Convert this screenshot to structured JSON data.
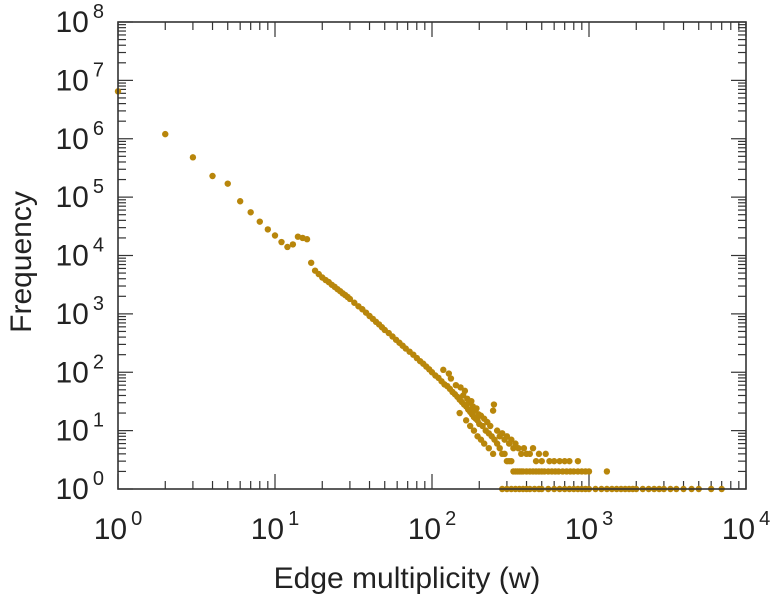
{
  "chart_data": {
    "type": "scatter",
    "xlabel": "Edge multiplicity (w)",
    "ylabel": "Frequency",
    "x_scale": "log",
    "y_scale": "log",
    "xlim": [
      1,
      10000
    ],
    "ylim": [
      1,
      100000000
    ],
    "x_ticks": [
      {
        "base": "10",
        "exp": "0",
        "value": 1
      },
      {
        "base": "10",
        "exp": "1",
        "value": 10
      },
      {
        "base": "10",
        "exp": "2",
        "value": 100
      },
      {
        "base": "10",
        "exp": "3",
        "value": 1000
      },
      {
        "base": "10",
        "exp": "4",
        "value": 10000
      }
    ],
    "y_ticks": [
      {
        "base": "10",
        "exp": "0",
        "value": 1
      },
      {
        "base": "10",
        "exp": "1",
        "value": 10
      },
      {
        "base": "10",
        "exp": "2",
        "value": 100
      },
      {
        "base": "10",
        "exp": "3",
        "value": 1000
      },
      {
        "base": "10",
        "exp": "4",
        "value": 10000
      },
      {
        "base": "10",
        "exp": "5",
        "value": 100000
      },
      {
        "base": "10",
        "exp": "6",
        "value": 1000000
      },
      {
        "base": "10",
        "exp": "7",
        "value": 10000000
      },
      {
        "base": "10",
        "exp": "8",
        "value": 100000000
      }
    ],
    "grid": false,
    "marker_color": "#b8860b",
    "series": [
      {
        "points": [
          [
            1,
            6500000
          ],
          [
            2,
            1200000
          ],
          [
            3,
            480000
          ],
          [
            4,
            230000
          ],
          [
            5,
            170000
          ],
          [
            6,
            85000
          ],
          [
            7,
            55000
          ],
          [
            8,
            38000
          ],
          [
            9,
            28000
          ],
          [
            10,
            22000
          ],
          [
            11,
            17000
          ],
          [
            12,
            14000
          ],
          [
            13,
            15500
          ],
          [
            14,
            21000
          ],
          [
            15,
            20000
          ],
          [
            16,
            19000
          ],
          [
            17,
            7500
          ],
          [
            18,
            5500
          ],
          [
            19,
            4800
          ],
          [
            20,
            4200
          ],
          [
            21,
            3800
          ],
          [
            22,
            3500
          ],
          [
            23,
            3150
          ],
          [
            24,
            2900
          ],
          [
            25,
            2650
          ],
          [
            26,
            2450
          ],
          [
            27,
            2250
          ],
          [
            28,
            2100
          ],
          [
            29,
            1950
          ],
          [
            30,
            1800
          ],
          [
            32,
            1550
          ],
          [
            34,
            1350
          ],
          [
            36,
            1200
          ],
          [
            38,
            1050
          ],
          [
            40,
            920
          ],
          [
            42,
            820
          ],
          [
            44,
            730
          ],
          [
            46,
            660
          ],
          [
            48,
            590
          ],
          [
            50,
            530
          ],
          [
            53,
            470
          ],
          [
            56,
            410
          ],
          [
            59,
            360
          ],
          [
            62,
            320
          ],
          [
            65,
            285
          ],
          [
            68,
            255
          ],
          [
            72,
            225
          ],
          [
            76,
            200
          ],
          [
            80,
            175
          ],
          [
            84,
            155
          ],
          [
            88,
            140
          ],
          [
            92,
            125
          ],
          [
            96,
            112
          ],
          [
            100,
            100
          ],
          [
            105,
            88
          ],
          [
            110,
            80
          ],
          [
            115,
            70
          ],
          [
            120,
            62
          ],
          [
            125,
            58
          ],
          [
            130,
            52
          ],
          [
            135,
            46
          ],
          [
            140,
            42
          ],
          [
            145,
            38
          ],
          [
            150,
            34
          ],
          [
            155,
            31
          ],
          [
            160,
            28
          ],
          [
            165,
            26
          ],
          [
            170,
            23
          ],
          [
            175,
            21
          ],
          [
            180,
            19
          ],
          [
            185,
            17
          ],
          [
            190,
            16
          ],
          [
            195,
            15
          ],
          [
            200,
            13
          ],
          [
            210,
            12
          ],
          [
            220,
            10
          ],
          [
            230,
            9
          ],
          [
            240,
            8
          ],
          [
            250,
            7
          ],
          [
            260,
            6
          ],
          [
            270,
            5
          ],
          [
            280,
            4
          ],
          [
            290,
            4
          ],
          [
            300,
            3
          ],
          [
            310,
            3
          ],
          [
            320,
            3
          ],
          [
            330,
            2
          ],
          [
            340,
            2
          ],
          [
            350,
            2
          ],
          [
            360,
            2
          ],
          [
            370,
            2
          ],
          [
            380,
            2
          ],
          [
            400,
            2
          ],
          [
            420,
            2
          ],
          [
            440,
            2
          ],
          [
            460,
            2
          ],
          [
            480,
            2
          ],
          [
            500,
            2
          ],
          [
            520,
            2
          ],
          [
            550,
            2
          ],
          [
            580,
            2
          ],
          [
            610,
            2
          ],
          [
            640,
            2
          ],
          [
            680,
            2
          ],
          [
            720,
            2
          ],
          [
            760,
            2
          ],
          [
            800,
            2
          ],
          [
            850,
            2
          ],
          [
            900,
            2
          ],
          [
            950,
            2
          ],
          [
            1000,
            2
          ],
          [
            118,
            110
          ],
          [
            128,
            95
          ],
          [
            132,
            78
          ],
          [
            142,
            60
          ],
          [
            152,
            55
          ],
          [
            158,
            40
          ],
          [
            162,
            48
          ],
          [
            168,
            35
          ],
          [
            172,
            30
          ],
          [
            178,
            32
          ],
          [
            182,
            26
          ],
          [
            188,
            22
          ],
          [
            192,
            24
          ],
          [
            198,
            19
          ],
          [
            205,
            18
          ],
          [
            215,
            16
          ],
          [
            225,
            14
          ],
          [
            235,
            12
          ],
          [
            245,
            22
          ],
          [
            248,
            28
          ],
          [
            150,
            20
          ],
          [
            165,
            15
          ],
          [
            175,
            12
          ],
          [
            185,
            10
          ],
          [
            195,
            8
          ],
          [
            205,
            7
          ],
          [
            215,
            6
          ],
          [
            230,
            5
          ],
          [
            245,
            4
          ],
          [
            260,
            10
          ],
          [
            270,
            8
          ],
          [
            280,
            9
          ],
          [
            290,
            7
          ],
          [
            300,
            8
          ],
          [
            310,
            6
          ],
          [
            320,
            7
          ],
          [
            330,
            5
          ],
          [
            340,
            6
          ],
          [
            355,
            5
          ],
          [
            370,
            4
          ],
          [
            385,
            5
          ],
          [
            400,
            4
          ],
          [
            420,
            4
          ],
          [
            440,
            5
          ],
          [
            460,
            3
          ],
          [
            480,
            4
          ],
          [
            500,
            3
          ],
          [
            530,
            4
          ],
          [
            560,
            3
          ],
          [
            600,
            3
          ],
          [
            650,
            3
          ],
          [
            700,
            3
          ],
          [
            750,
            3
          ],
          [
            850,
            3
          ],
          [
            280,
            1
          ],
          [
            300,
            1
          ],
          [
            320,
            1
          ],
          [
            340,
            1
          ],
          [
            360,
            1
          ],
          [
            380,
            1
          ],
          [
            400,
            1
          ],
          [
            420,
            1
          ],
          [
            450,
            1
          ],
          [
            480,
            1
          ],
          [
            500,
            1
          ],
          [
            550,
            1
          ],
          [
            600,
            1
          ],
          [
            650,
            1
          ],
          [
            700,
            1
          ],
          [
            750,
            1
          ],
          [
            800,
            1
          ],
          [
            850,
            1
          ],
          [
            900,
            1
          ],
          [
            950,
            1
          ],
          [
            1000,
            1
          ],
          [
            1100,
            1
          ],
          [
            1200,
            1
          ],
          [
            1300,
            1
          ],
          [
            1400,
            1
          ],
          [
            1500,
            1
          ],
          [
            1600,
            1
          ],
          [
            1700,
            1
          ],
          [
            1800,
            1
          ],
          [
            1900,
            1
          ],
          [
            2000,
            1
          ],
          [
            2200,
            1
          ],
          [
            2400,
            1
          ],
          [
            2600,
            1
          ],
          [
            2800,
            1
          ],
          [
            3000,
            1
          ],
          [
            3300,
            1
          ],
          [
            3600,
            1
          ],
          [
            4000,
            1
          ],
          [
            4500,
            1
          ],
          [
            5000,
            1
          ],
          [
            6000,
            1
          ],
          [
            7000,
            1
          ],
          [
            1300,
            2
          ]
        ]
      }
    ]
  }
}
